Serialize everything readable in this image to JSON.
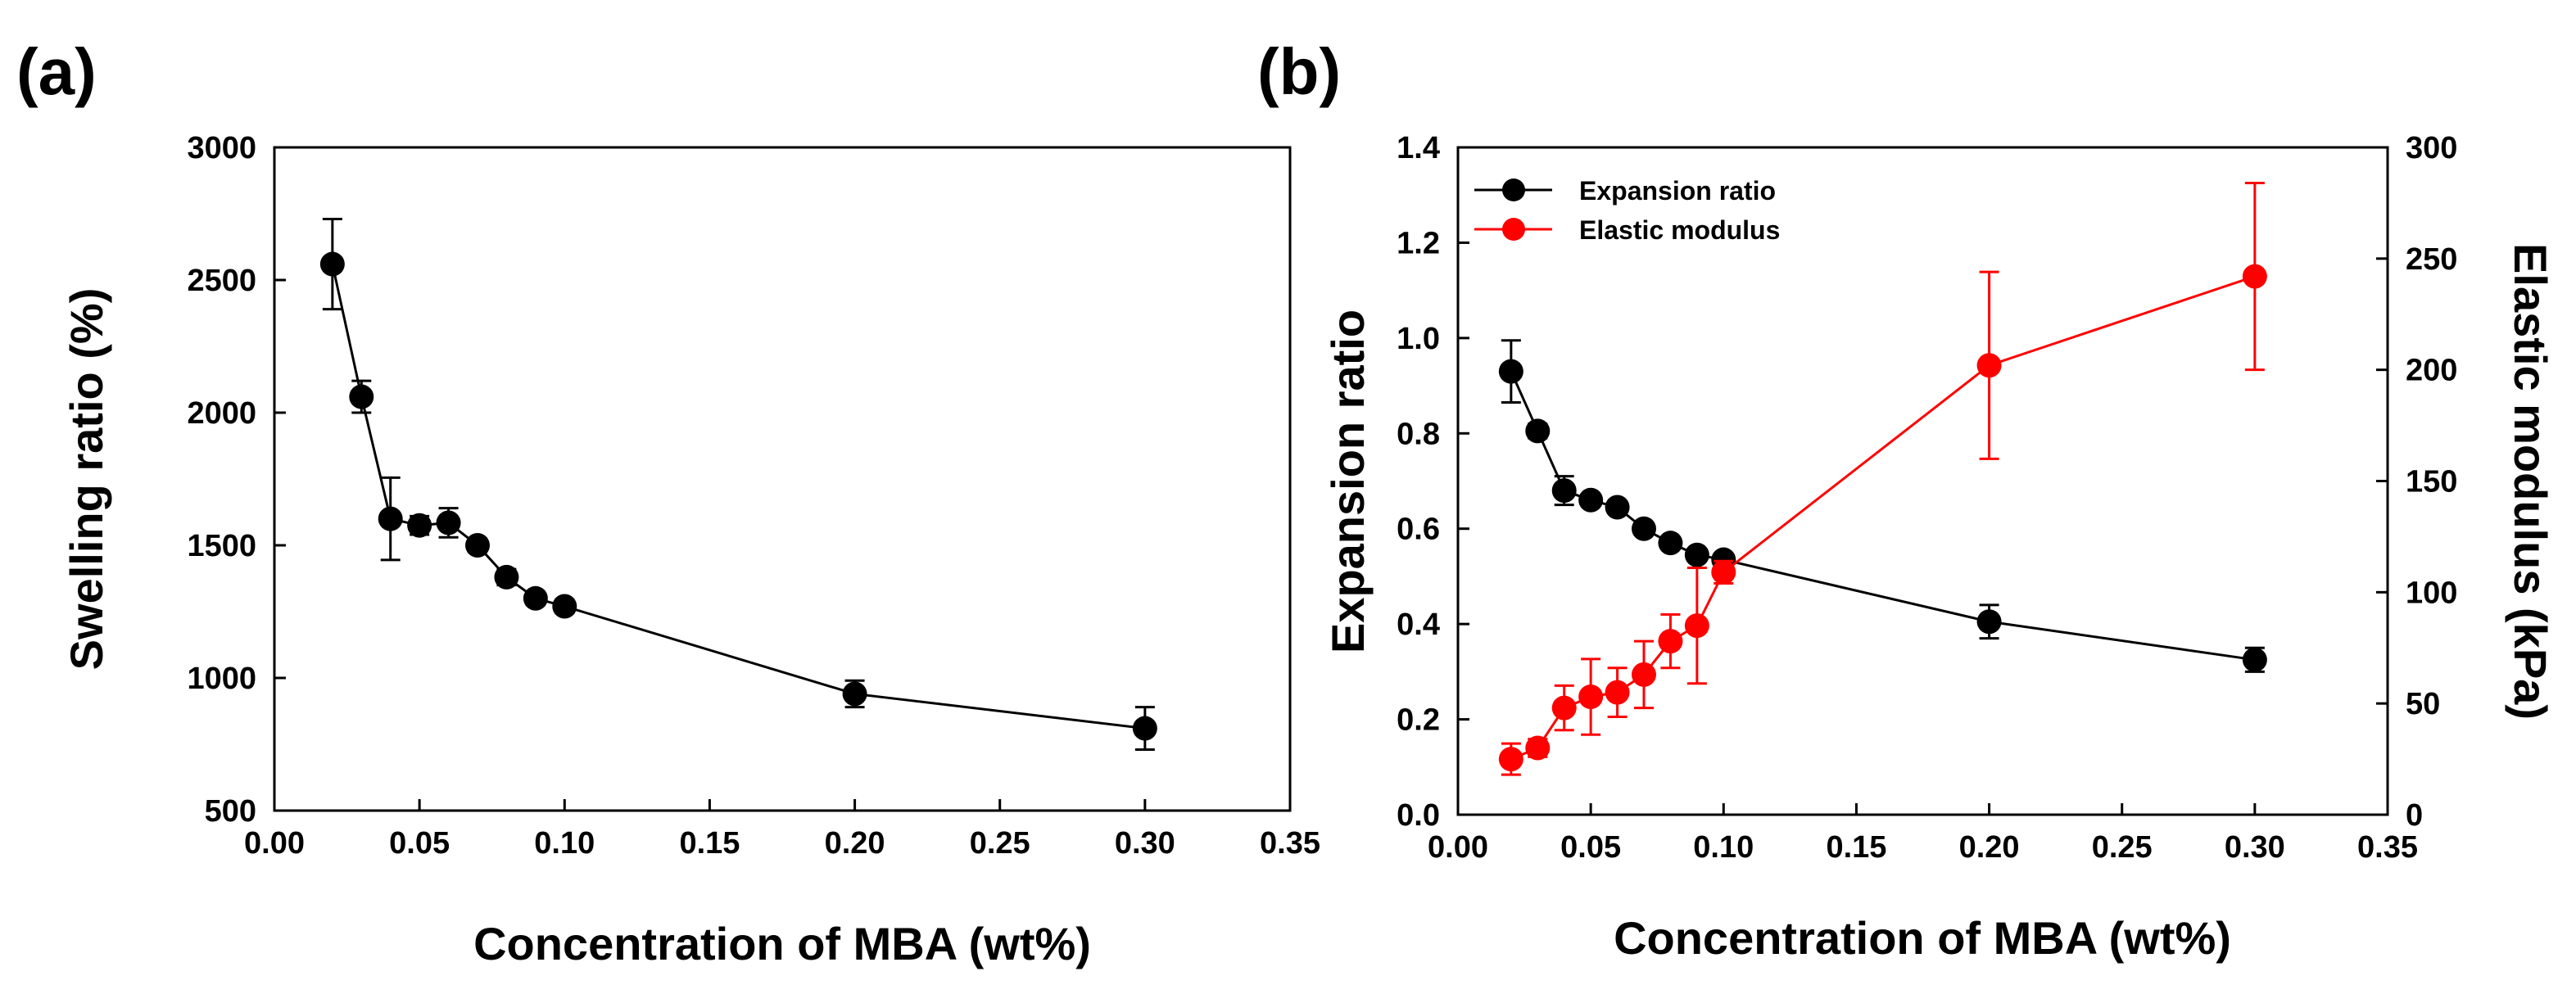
{
  "chart_data": [
    {
      "panel": "(a)",
      "type": "line",
      "xlabel": "Concentration of MBA (wt%)",
      "ylabel": "Swelling ratio (%)",
      "xlim": [
        0.0,
        0.35
      ],
      "ylim": [
        500,
        3000
      ],
      "xticks": [
        "0.00",
        "0.05",
        "0.10",
        "0.15",
        "0.20",
        "0.25",
        "0.30",
        "0.35"
      ],
      "yticks": [
        "500",
        "1000",
        "1500",
        "2000",
        "2500",
        "3000"
      ],
      "series": [
        {
          "name": "Swelling ratio",
          "color": "#000000",
          "x": [
            0.02,
            0.03,
            0.04,
            0.05,
            0.06,
            0.07,
            0.08,
            0.09,
            0.1,
            0.2,
            0.3
          ],
          "values": [
            2560,
            2060,
            1600,
            1575,
            1585,
            1500,
            1380,
            1300,
            1270,
            940,
            810
          ],
          "errors": [
            170,
            60,
            155,
            35,
            55,
            25,
            30,
            25,
            25,
            50,
            80
          ]
        }
      ]
    },
    {
      "panel": "(b)",
      "type": "line",
      "xlabel": "Concentration of MBA (wt%)",
      "ylabel": "Expansion ratio",
      "y2label": "Elastic modulus (kPa)",
      "xlim": [
        0.0,
        0.35
      ],
      "ylim": [
        0.0,
        1.4
      ],
      "y2lim": [
        0,
        300
      ],
      "xticks": [
        "0.00",
        "0.05",
        "0.10",
        "0.15",
        "0.20",
        "0.25",
        "0.30",
        "0.35"
      ],
      "yticks": [
        "0.0",
        "0.2",
        "0.4",
        "0.6",
        "0.8",
        "1.0",
        "1.2",
        "1.4"
      ],
      "y2ticks": [
        "0",
        "50",
        "100",
        "150",
        "200",
        "250",
        "300"
      ],
      "legend_position": "top-left",
      "series": [
        {
          "name": "Expansion ratio",
          "axis": "left",
          "color": "#000000",
          "x": [
            0.02,
            0.03,
            0.04,
            0.05,
            0.06,
            0.07,
            0.08,
            0.09,
            0.1,
            0.2,
            0.3
          ],
          "values": [
            0.93,
            0.805,
            0.68,
            0.66,
            0.645,
            0.6,
            0.57,
            0.545,
            0.535,
            0.405,
            0.325
          ],
          "errors": [
            0.065,
            0.015,
            0.03,
            0.012,
            0.012,
            0.012,
            0.012,
            0.012,
            0.012,
            0.035,
            0.025
          ]
        },
        {
          "name": "Elastic modulus",
          "axis": "right",
          "color": "#ff0000",
          "x": [
            0.02,
            0.03,
            0.04,
            0.05,
            0.06,
            0.07,
            0.08,
            0.09,
            0.1,
            0.2,
            0.3
          ],
          "values": [
            25,
            30,
            48,
            53,
            55,
            63,
            78,
            85,
            109,
            202,
            242
          ],
          "errors": [
            7,
            4,
            10,
            17,
            11,
            15,
            12,
            26,
            5,
            42,
            42
          ]
        }
      ]
    }
  ]
}
